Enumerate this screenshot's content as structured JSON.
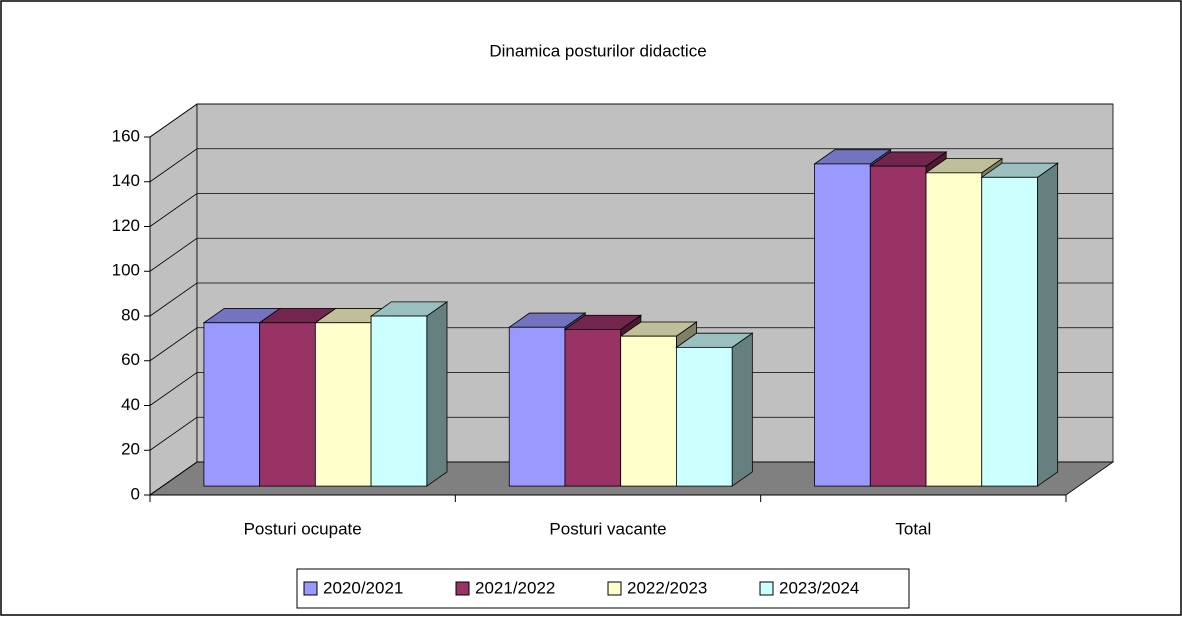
{
  "chart_data": {
    "type": "bar3d",
    "title": "Dinamica posturilor didactice",
    "categories": [
      "Posturi ocupate",
      "Posturi vacante",
      "Total"
    ],
    "series": [
      {
        "name": "2020/2021",
        "color": "#9999ff",
        "values": [
          73,
          71,
          144
        ]
      },
      {
        "name": "2021/2022",
        "color": "#993366",
        "values": [
          73,
          70,
          143
        ]
      },
      {
        "name": "2022/2023",
        "color": "#ffffcc",
        "values": [
          73,
          67,
          140
        ]
      },
      {
        "name": "2023/2024",
        "color": "#ccffff",
        "values": [
          76,
          62,
          138
        ]
      }
    ],
    "ylim": [
      0,
      160
    ],
    "yticks": [
      0,
      20,
      40,
      60,
      80,
      100,
      120,
      140,
      160
    ],
    "grid": true,
    "legend": "bottom"
  }
}
